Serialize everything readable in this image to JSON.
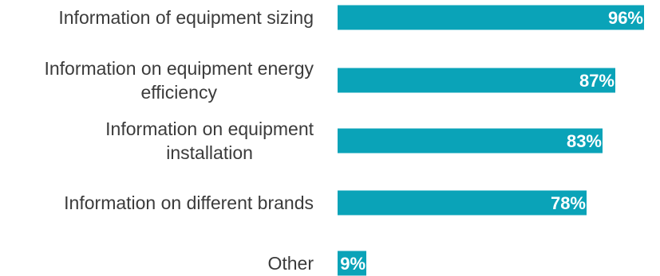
{
  "chart_data": {
    "type": "bar",
    "orientation": "horizontal",
    "categories": [
      [
        "Information of equipment sizing"
      ],
      [
        "Information on equipment energy",
        "efficiency"
      ],
      [
        "Information on equipment",
        "installation"
      ],
      [
        "Information on different brands"
      ],
      [
        "Other"
      ]
    ],
    "values": [
      96,
      87,
      83,
      78,
      9
    ],
    "value_labels": [
      "96%",
      "87%",
      "83%",
      "78%",
      "9%"
    ],
    "xlim": [
      0,
      100
    ],
    "unit": "%",
    "grid": false,
    "legend": "none",
    "bar_color": "#0aa3b8",
    "label_color": "#ffffff",
    "category_text_color": "#3b3b3b"
  }
}
